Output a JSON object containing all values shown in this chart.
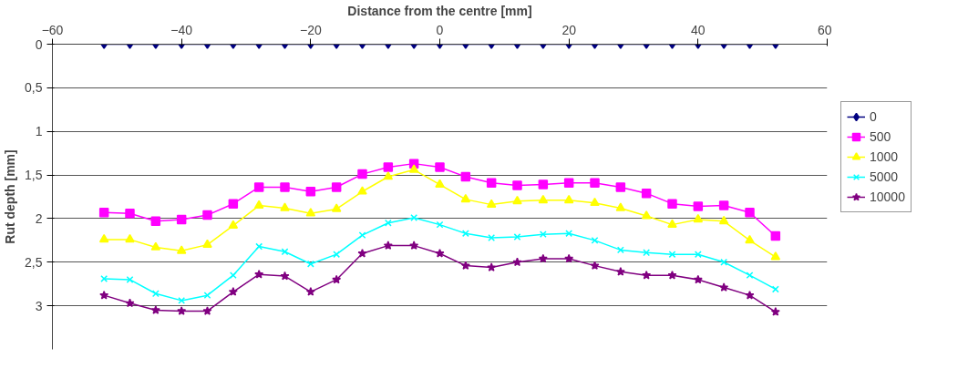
{
  "chart_data": {
    "type": "line",
    "xlabel": "Distance from the centre [mm]",
    "ylabel": "Rut depth [mm]",
    "x": [
      -52,
      -48,
      -44,
      -40,
      -36,
      -32,
      -28,
      -24,
      -20,
      -16,
      -12,
      -8,
      -4,
      0,
      4,
      8,
      12,
      16,
      20,
      24,
      28,
      32,
      36,
      40,
      44,
      48,
      52
    ],
    "xlim": [
      -60,
      60
    ],
    "xticks": [
      -60,
      -40,
      -20,
      0,
      20,
      40,
      60
    ],
    "ylim": [
      3.5,
      0
    ],
    "yticks": [
      0,
      {
        "value": 0.5,
        "label": "0,5"
      },
      1,
      {
        "value": 1.5,
        "label": "1,5"
      },
      2,
      {
        "value": 2.5,
        "label": "2,5"
      },
      3
    ],
    "grid": "y",
    "legend": "right",
    "line_style": "solid",
    "series": [
      {
        "name": "0",
        "color": "#000080",
        "marker": "diamond",
        "values": [
          0,
          0,
          0,
          0,
          0,
          0,
          0,
          0,
          0,
          0,
          0,
          0,
          0,
          0,
          0,
          0,
          0,
          0,
          0,
          0,
          0,
          0,
          0,
          0,
          0,
          0,
          0
        ]
      },
      {
        "name": "500",
        "color": "#ff00ff",
        "marker": "square",
        "values": [
          1.93,
          1.94,
          2.03,
          2.01,
          1.96,
          1.83,
          1.64,
          1.64,
          1.69,
          1.64,
          1.49,
          1.41,
          1.37,
          1.41,
          1.52,
          1.59,
          1.62,
          1.61,
          1.59,
          1.59,
          1.64,
          1.71,
          1.83,
          1.86,
          1.85,
          1.93,
          2.2
        ]
      },
      {
        "name": "1000",
        "color": "#ffff00",
        "marker": "triangle",
        "values": [
          2.24,
          2.24,
          2.33,
          2.37,
          2.3,
          2.08,
          1.85,
          1.88,
          1.94,
          1.89,
          1.69,
          1.52,
          1.44,
          1.61,
          1.78,
          1.84,
          1.8,
          1.79,
          1.79,
          1.82,
          1.88,
          1.97,
          2.07,
          2.01,
          2.03,
          2.25,
          2.44
        ]
      },
      {
        "name": "5000",
        "color": "#00ffff",
        "marker": "cross",
        "values": [
          2.69,
          2.7,
          2.86,
          2.94,
          2.88,
          2.65,
          2.32,
          2.38,
          2.52,
          2.41,
          2.19,
          2.05,
          1.99,
          2.07,
          2.17,
          2.22,
          2.21,
          2.18,
          2.17,
          2.25,
          2.36,
          2.39,
          2.41,
          2.41,
          2.5,
          2.65,
          2.81
        ]
      },
      {
        "name": "10000",
        "color": "#800080",
        "marker": "star",
        "values": [
          2.88,
          2.97,
          3.05,
          3.06,
          3.06,
          2.84,
          2.64,
          2.66,
          2.84,
          2.7,
          2.4,
          2.31,
          2.31,
          2.4,
          2.54,
          2.56,
          2.5,
          2.46,
          2.46,
          2.54,
          2.61,
          2.65,
          2.65,
          2.7,
          2.79,
          2.88,
          3.07
        ]
      }
    ]
  }
}
